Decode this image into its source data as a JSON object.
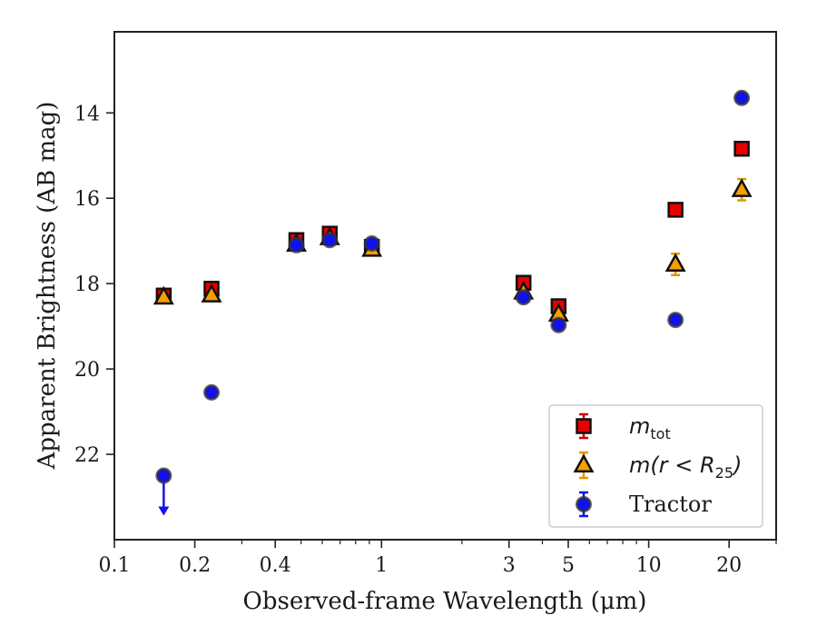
{
  "chart_data": {
    "type": "scatter",
    "xlabel": "Observed-frame Wavelength (μm)",
    "ylabel": "Apparent Brightness (AB mag)",
    "x_scale": "log",
    "xlim": [
      0.1,
      30
    ],
    "ylim": [
      24.0,
      12.1
    ],
    "y_inverted": true,
    "x_ticks": [
      {
        "value": 0.1,
        "label": "0.1"
      },
      {
        "value": 0.2,
        "label": "0.2"
      },
      {
        "value": 0.4,
        "label": "0.4"
      },
      {
        "value": 1,
        "label": "1"
      },
      {
        "value": 3,
        "label": "3"
      },
      {
        "value": 5,
        "label": "5"
      },
      {
        "value": 10,
        "label": "10"
      },
      {
        "value": 20,
        "label": "20"
      }
    ],
    "y_ticks": [
      {
        "value": 14,
        "label": "14"
      },
      {
        "value": 16,
        "label": "16"
      },
      {
        "value": 18,
        "label": "18"
      },
      {
        "value": 20,
        "label": "20"
      },
      {
        "value": 22,
        "label": "22"
      }
    ],
    "grid": false,
    "legend_position": "bottom-right",
    "legend": [
      {
        "series": 0,
        "text_parts": [
          "m",
          "tot",
          ""
        ]
      },
      {
        "series": 1,
        "text_parts": [
          "m(r < R",
          "25",
          ")"
        ]
      },
      {
        "series": 2,
        "text_parts": [
          "Tractor",
          "",
          ""
        ]
      }
    ],
    "series": [
      {
        "name": "m_tot",
        "marker": "square",
        "color": "#e60000",
        "error_color": "#cc0000",
        "points": [
          {
            "x": 0.153,
            "y": 18.28,
            "err": 0.05
          },
          {
            "x": 0.231,
            "y": 18.12,
            "err": 0.05
          },
          {
            "x": 0.48,
            "y": 16.98,
            "err": 0.04
          },
          {
            "x": 0.64,
            "y": 16.83,
            "err": 0.04
          },
          {
            "x": 0.92,
            "y": 17.14,
            "err": 0.05
          },
          {
            "x": 3.4,
            "y": 17.98,
            "err": 0.05
          },
          {
            "x": 4.6,
            "y": 18.53,
            "err": 0.05
          },
          {
            "x": 12.6,
            "y": 16.27,
            "err": 0.04
          },
          {
            "x": 22.3,
            "y": 14.84,
            "err": 0.05
          }
        ]
      },
      {
        "name": "m(r < R25)",
        "marker": "triangle",
        "color": "#f5a000",
        "error_color": "#e69500",
        "points": [
          {
            "x": 0.153,
            "y": 18.32,
            "err": 0.05
          },
          {
            "x": 0.231,
            "y": 18.27,
            "err": 0.05
          },
          {
            "x": 0.48,
            "y": 17.08,
            "err": 0.04
          },
          {
            "x": 0.64,
            "y": 16.93,
            "err": 0.04
          },
          {
            "x": 0.92,
            "y": 17.2,
            "err": 0.05
          },
          {
            "x": 3.4,
            "y": 18.2,
            "err": 0.05
          },
          {
            "x": 4.6,
            "y": 18.72,
            "err": 0.05
          },
          {
            "x": 12.6,
            "y": 17.55,
            "err": 0.25
          },
          {
            "x": 22.3,
            "y": 15.8,
            "err": 0.25
          }
        ]
      },
      {
        "name": "Tractor",
        "marker": "circle",
        "color": "#1111ee",
        "error_color": "#1111ee",
        "points": [
          {
            "x": 0.153,
            "y": 22.5,
            "err": 0.05,
            "upper_limit": true
          },
          {
            "x": 0.231,
            "y": 20.55,
            "err": 0.05
          },
          {
            "x": 0.48,
            "y": 17.1,
            "err": 0.04
          },
          {
            "x": 0.64,
            "y": 16.98,
            "err": 0.04
          },
          {
            "x": 0.92,
            "y": 17.06,
            "err": 0.05
          },
          {
            "x": 3.4,
            "y": 18.32,
            "err": 0.05
          },
          {
            "x": 4.6,
            "y": 18.97,
            "err": 0.05
          },
          {
            "x": 12.6,
            "y": 18.85,
            "err": 0.05
          },
          {
            "x": 22.3,
            "y": 13.65,
            "err": 0.05
          }
        ]
      }
    ]
  }
}
